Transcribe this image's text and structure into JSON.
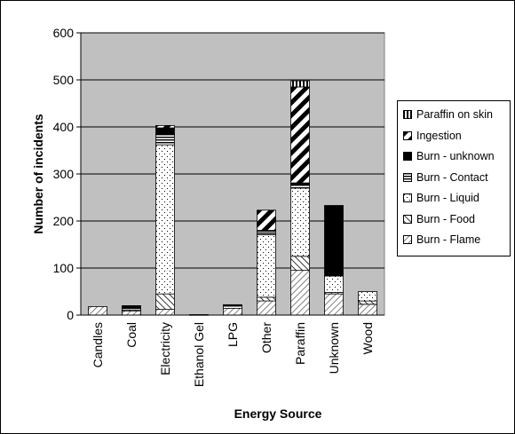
{
  "chart_data": {
    "type": "bar",
    "stacked": true,
    "title": "",
    "xlabel": "Energy Source",
    "ylabel": "Number of incidents",
    "ylim": [
      0,
      600
    ],
    "yticks": [
      0,
      100,
      200,
      300,
      400,
      500,
      600
    ],
    "grid": true,
    "legend_position": "right",
    "categories": [
      "Candles",
      "Coal",
      "Electricity",
      "Ethanol Gel",
      "LPG",
      "Other",
      "Paraffin",
      "Unknown",
      "Wood"
    ],
    "series": [
      {
        "name": "Burn - Flame",
        "pattern": "diag-dense-bg",
        "values": [
          18,
          9,
          12,
          0,
          14,
          30,
          95,
          45,
          23
        ]
      },
      {
        "name": "Burn - Food",
        "pattern": "diag-back",
        "values": [
          0,
          2,
          33,
          0,
          0,
          8,
          30,
          3,
          7
        ]
      },
      {
        "name": "Burn - Liquid",
        "pattern": "dots",
        "values": [
          0,
          3,
          317,
          0,
          5,
          133,
          145,
          35,
          20
        ]
      },
      {
        "name": "Burn - Contact",
        "pattern": "hstripes",
        "values": [
          0,
          3,
          22,
          0,
          2,
          7,
          7,
          0,
          0
        ]
      },
      {
        "name": "Burn - unknown",
        "pattern": "solid",
        "values": [
          0,
          3,
          14,
          1,
          1,
          2,
          4,
          150,
          0
        ]
      },
      {
        "name": "Ingestion",
        "pattern": "diag-thick",
        "values": [
          0,
          0,
          5,
          0,
          0,
          43,
          204,
          0,
          0
        ]
      },
      {
        "name": "Paraffin on skin",
        "pattern": "vstripes",
        "values": [
          0,
          0,
          0,
          0,
          0,
          0,
          13,
          0,
          0
        ]
      }
    ],
    "colors": {
      "plot_bg": "#c0c0c0",
      "bar_fg": "#000000",
      "bar_bg": "#ffffff"
    }
  }
}
